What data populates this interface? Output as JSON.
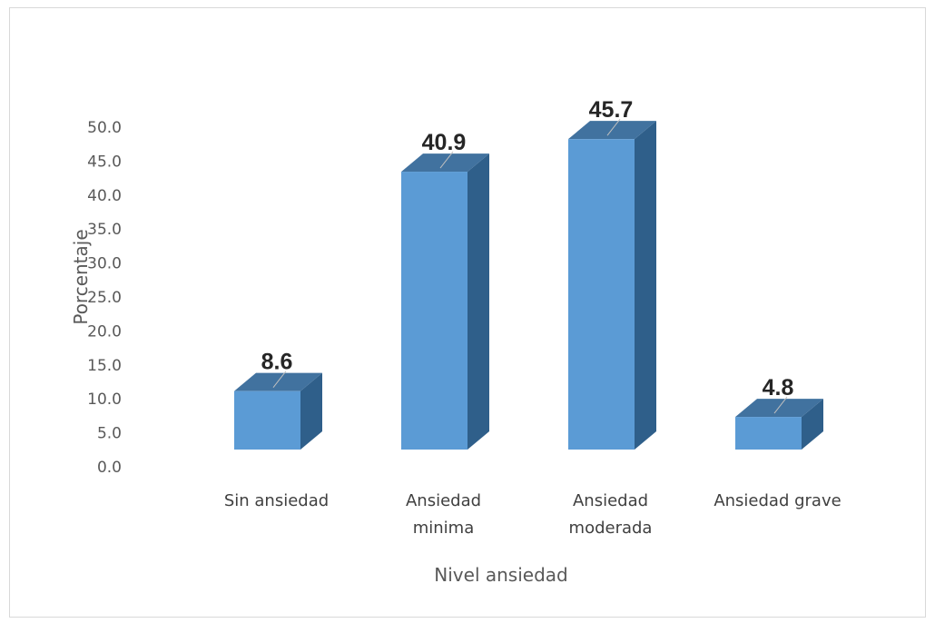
{
  "chart_data": {
    "type": "bar",
    "style": "3d-column",
    "categories": [
      [
        "Sin ansiedad"
      ],
      [
        "Ansiedad",
        "minima"
      ],
      [
        "Ansiedad",
        "moderada"
      ],
      [
        "Ansiedad grave"
      ]
    ],
    "values": [
      8.6,
      40.9,
      45.7,
      4.8
    ],
    "data_labels": [
      "8.6",
      "40.9",
      "45.7",
      "4.8"
    ],
    "xlabel": "Nivel ansiedad",
    "ylabel": "Porcentaje",
    "ylim": [
      0,
      50
    ],
    "yticks": [
      "0.0",
      "5.0",
      "10.0",
      "15.0",
      "20.0",
      "25.0",
      "30.0",
      "35.0",
      "40.0",
      "45.0",
      "50.0"
    ],
    "grid": false,
    "legend": "none",
    "colors": {
      "front": "#5b9bd5",
      "side": "#2f5f8a",
      "top": "#41729f"
    }
  }
}
